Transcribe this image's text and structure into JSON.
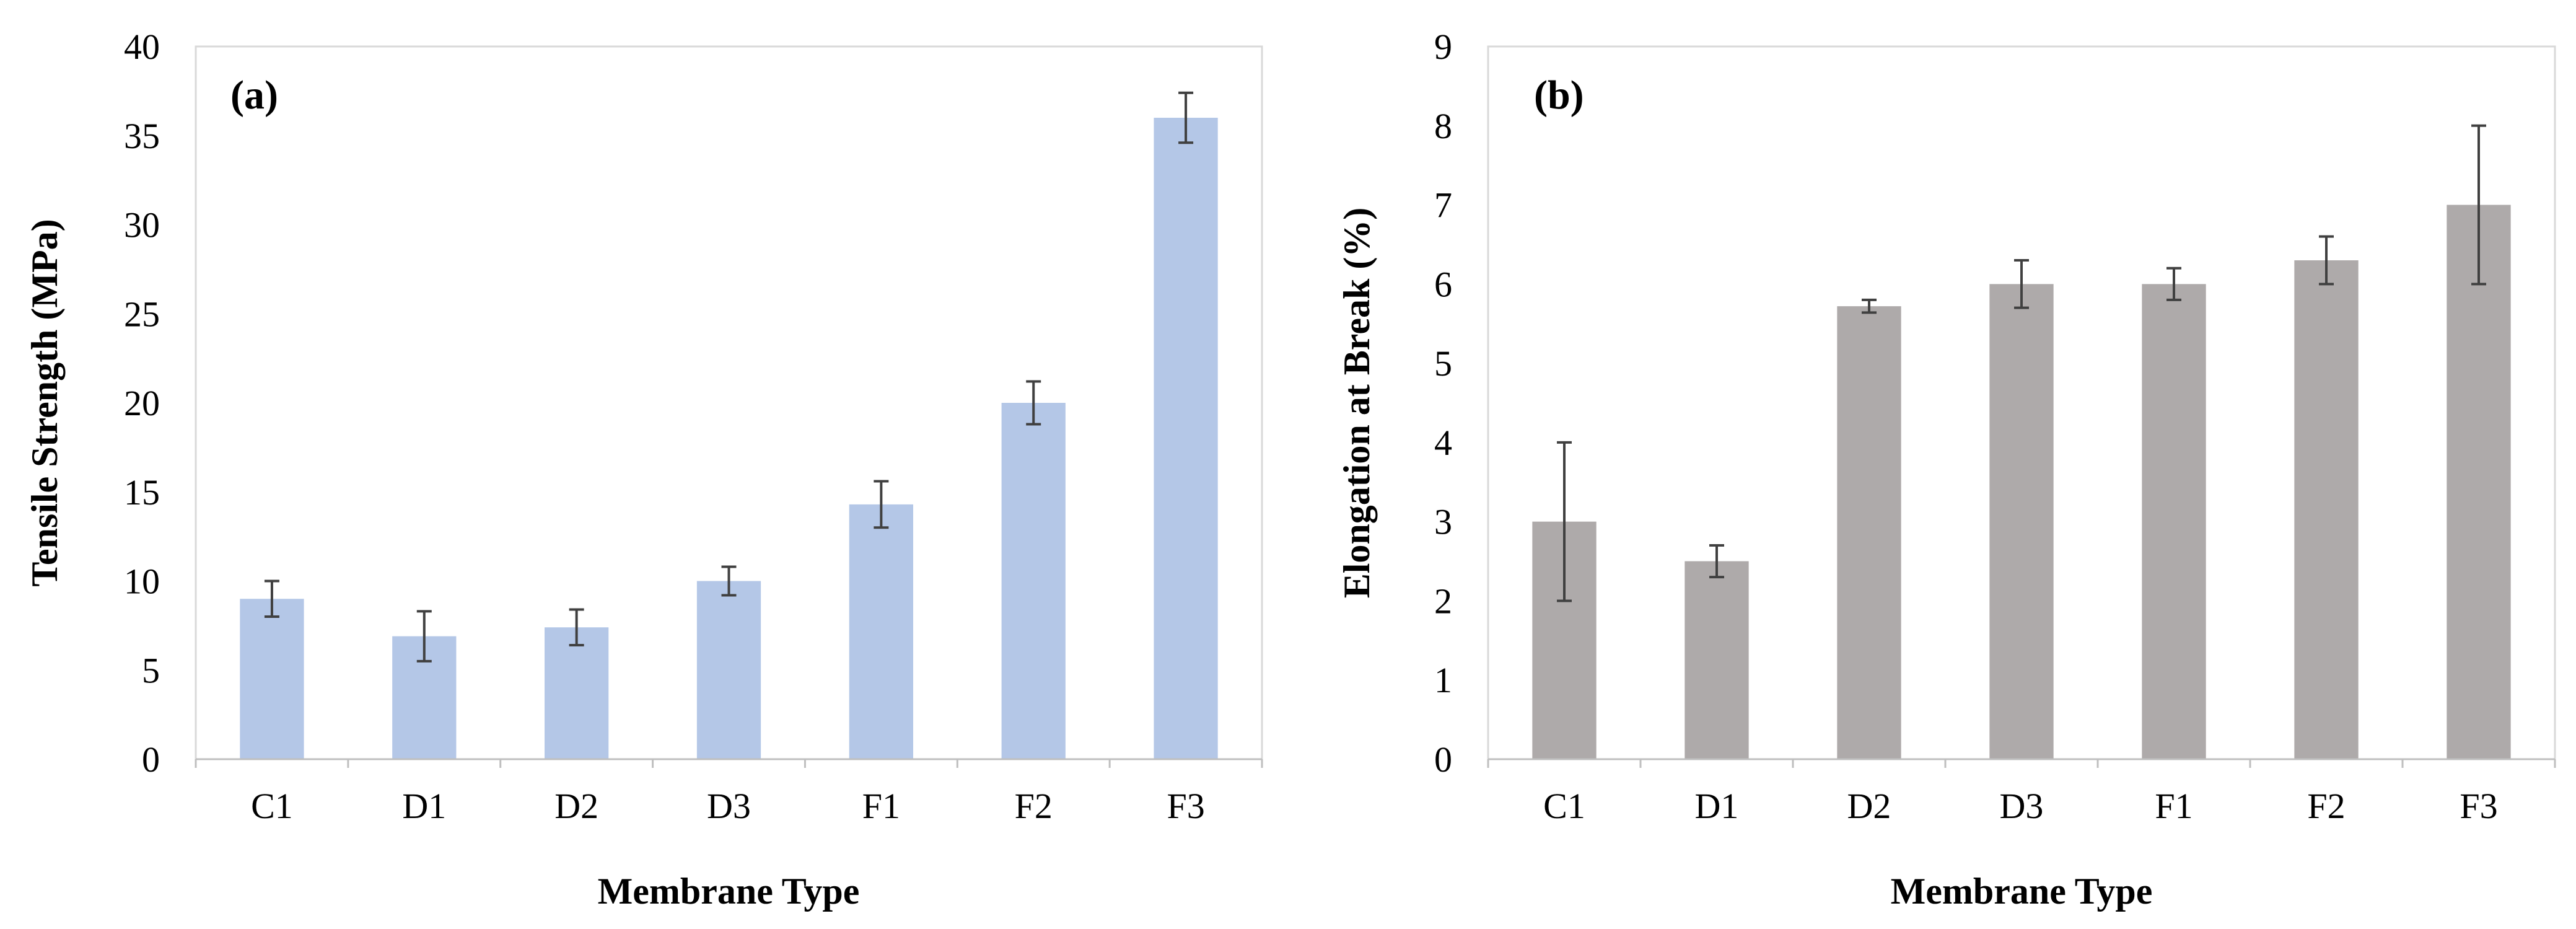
{
  "chart_data": [
    {
      "type": "bar",
      "panel_label": "(a)",
      "categories": [
        "C1",
        "D1",
        "D2",
        "D3",
        "F1",
        "F2",
        "F3"
      ],
      "values": [
        9.0,
        6.9,
        7.4,
        10.0,
        14.3,
        20.0,
        36.0
      ],
      "errors": [
        1.0,
        1.4,
        1.0,
        0.8,
        1.3,
        1.2,
        1.4
      ],
      "xlabel": "Membrane Type",
      "ylabel": "Tensile Strength (MPa)",
      "ylim": [
        0,
        40
      ],
      "yticks": [
        "0",
        "5",
        "10",
        "15",
        "20",
        "25",
        "30",
        "35",
        "40"
      ],
      "bar_color": "#b4c7e7",
      "grid": false
    },
    {
      "type": "bar",
      "panel_label": "(b)",
      "categories": [
        "C1",
        "D1",
        "D2",
        "D3",
        "F1",
        "F2",
        "F3"
      ],
      "values": [
        3.0,
        2.5,
        5.72,
        6.0,
        6.0,
        6.3,
        7.0
      ],
      "errors": [
        1.0,
        0.2,
        0.08,
        0.3,
        0.2,
        0.3,
        1.0
      ],
      "xlabel": "Membrane Type",
      "ylabel": "Elongation at Break (%)",
      "ylim": [
        0,
        9
      ],
      "yticks": [
        "0",
        "1",
        "2",
        "3",
        "4",
        "5",
        "6",
        "7",
        "8",
        "9"
      ],
      "bar_color": "#aeaaaa",
      "grid": false
    }
  ]
}
